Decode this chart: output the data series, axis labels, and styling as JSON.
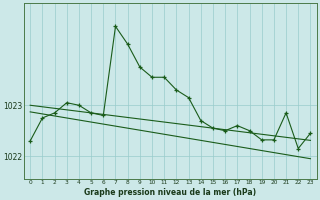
{
  "xlabel": "Graphe pression niveau de la mer (hPa)",
  "hours": [
    0,
    1,
    2,
    3,
    4,
    5,
    6,
    7,
    8,
    9,
    10,
    11,
    12,
    13,
    14,
    15,
    16,
    17,
    18,
    19,
    20,
    21,
    22,
    23
  ],
  "main_data": [
    1022.3,
    1022.75,
    1022.85,
    1023.05,
    1023.0,
    1022.85,
    1022.8,
    1024.55,
    1024.2,
    1023.75,
    1023.55,
    1023.55,
    1023.3,
    1023.15,
    1022.7,
    1022.55,
    1022.5,
    1022.6,
    1022.5,
    1022.32,
    1022.32,
    1022.85,
    1022.15,
    1022.45
  ],
  "trend1": [
    1023.0,
    1022.97,
    1022.94,
    1022.91,
    1022.88,
    1022.85,
    1022.82,
    1022.79,
    1022.76,
    1022.73,
    1022.7,
    1022.67,
    1022.64,
    1022.61,
    1022.58,
    1022.55,
    1022.52,
    1022.49,
    1022.46,
    1022.43,
    1022.4,
    1022.37,
    1022.34,
    1022.31
  ],
  "trend2": [
    1022.87,
    1022.83,
    1022.79,
    1022.75,
    1022.71,
    1022.67,
    1022.63,
    1022.59,
    1022.55,
    1022.51,
    1022.47,
    1022.43,
    1022.39,
    1022.35,
    1022.31,
    1022.27,
    1022.23,
    1022.19,
    1022.15,
    1022.11,
    1022.07,
    1022.03,
    1021.99,
    1021.95
  ],
  "bg_color": "#cce8e8",
  "grid_color": "#99cccc",
  "line_color": "#1a5c1a",
  "ylim_min": 1021.55,
  "ylim_max": 1025.0,
  "yticks": [
    1022,
    1023
  ],
  "xticks": [
    0,
    1,
    2,
    3,
    4,
    5,
    6,
    7,
    8,
    9,
    10,
    11,
    12,
    13,
    14,
    15,
    16,
    17,
    18,
    19,
    20,
    21,
    22,
    23
  ]
}
